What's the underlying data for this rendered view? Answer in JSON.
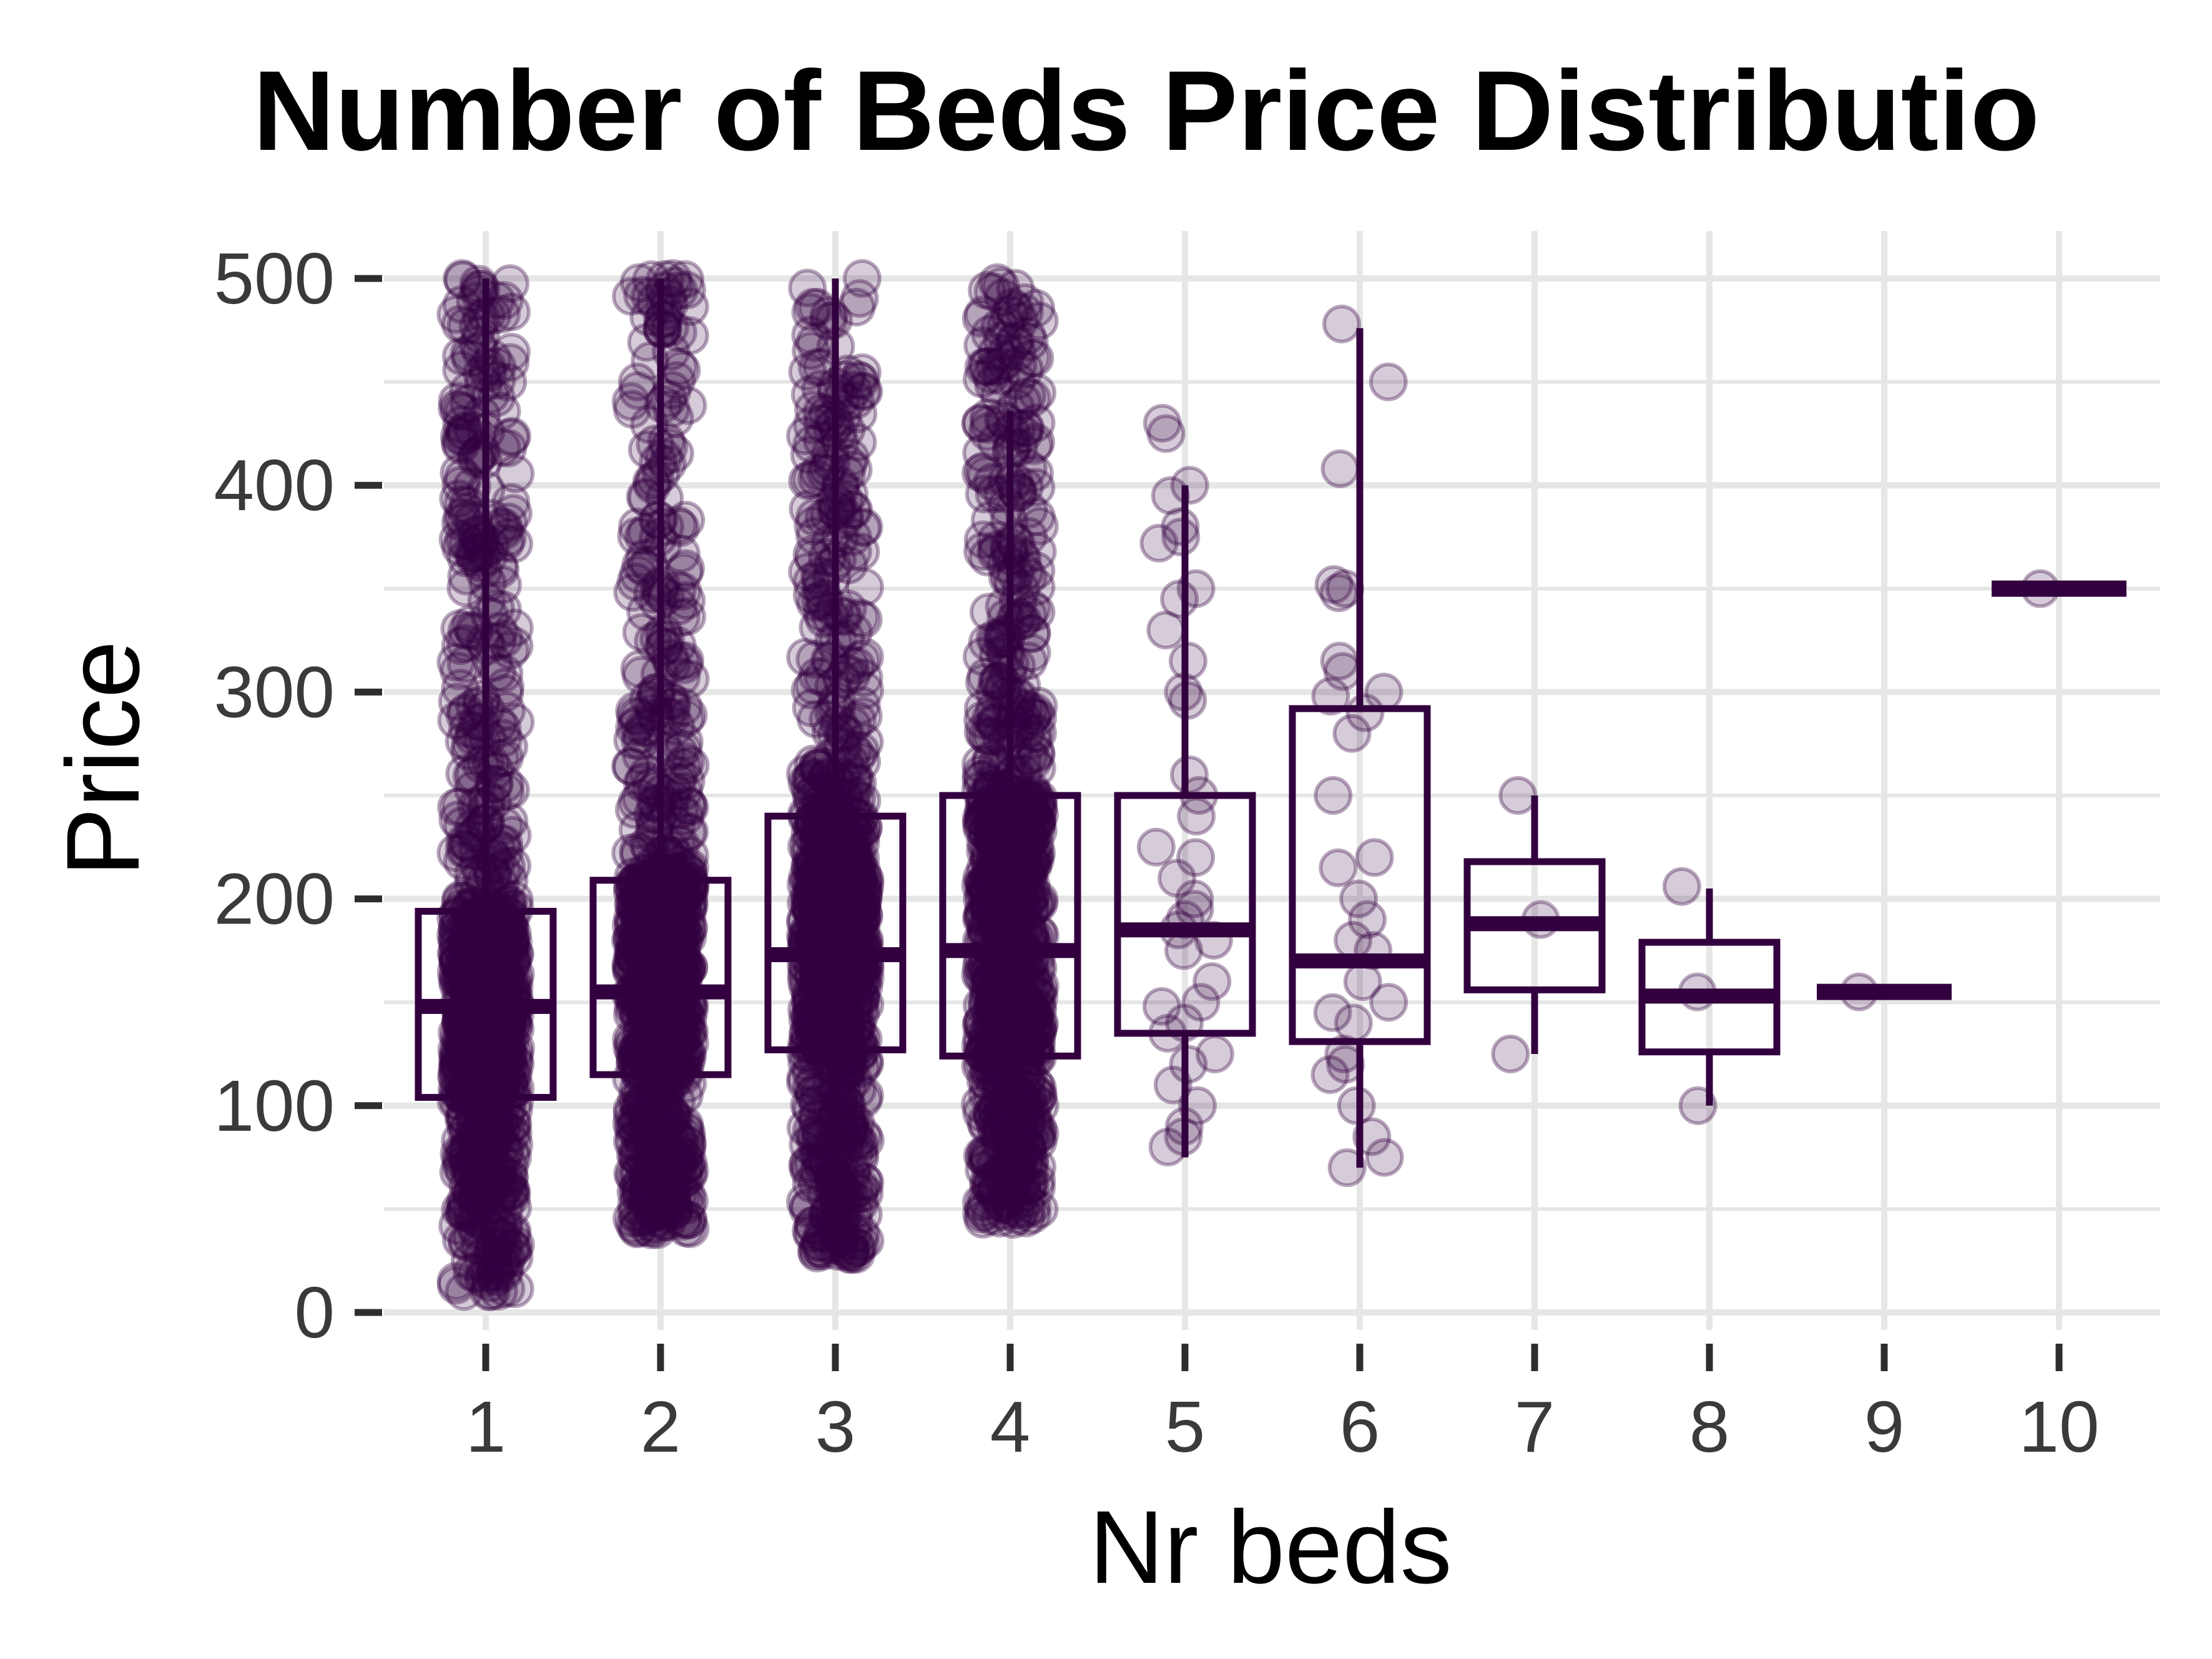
{
  "chart_data": {
    "type": "boxplot",
    "title": "Number of Beds Price Distributio",
    "xlabel": "Nr beds",
    "ylabel": "Price",
    "ylim": [
      0,
      500
    ],
    "yticks": [
      0,
      100,
      200,
      300,
      400,
      500
    ],
    "categories": [
      "1",
      "2",
      "3",
      "4",
      "5",
      "6",
      "7",
      "8",
      "9",
      "10"
    ],
    "grid": true,
    "legend": "none",
    "colors": {
      "series": "#33003f",
      "grid": "#e6e6e6",
      "tick": "#2d2d2d"
    },
    "boxes": [
      {
        "category": "1",
        "min": 12,
        "q1": 104,
        "median": 148,
        "q3": 194,
        "max": 500
      },
      {
        "category": "2",
        "min": 40,
        "q1": 115,
        "median": 155,
        "q3": 209,
        "max": 500
      },
      {
        "category": "3",
        "min": 30,
        "q1": 127,
        "median": 173,
        "q3": 240,
        "max": 500
      },
      {
        "category": "4",
        "min": 46,
        "q1": 124,
        "median": 175,
        "q3": 250,
        "max": 436
      },
      {
        "category": "5",
        "min": 75,
        "q1": 135,
        "median": 185,
        "q3": 250,
        "max": 400
      },
      {
        "category": "6",
        "min": 70,
        "q1": 131,
        "median": 170,
        "q3": 292,
        "max": 476
      },
      {
        "category": "7",
        "min": 125,
        "q1": 156,
        "median": 188,
        "q3": 218,
        "max": 250
      },
      {
        "category": "8",
        "min": 100,
        "q1": 126,
        "median": 153,
        "q3": 179,
        "max": 205
      },
      {
        "category": "9",
        "min": 155,
        "q1": 155,
        "median": 155,
        "q3": 155,
        "max": 155
      },
      {
        "category": "10",
        "min": 350,
        "q1": 350,
        "median": 350,
        "q3": 350,
        "max": 350
      }
    ],
    "points": [
      {
        "category": "1",
        "density": "dense",
        "range": [
          10,
          500
        ]
      },
      {
        "category": "2",
        "density": "dense",
        "range": [
          40,
          500
        ]
      },
      {
        "category": "3",
        "density": "dense",
        "range": [
          28,
          500
        ]
      },
      {
        "category": "4",
        "density": "dense",
        "range": [
          45,
          498
        ]
      },
      {
        "category": "5",
        "values": [
          430,
          425,
          400,
          395,
          380,
          375,
          372,
          350,
          345,
          330,
          315,
          300,
          296,
          260,
          250,
          240,
          225,
          220,
          210,
          200,
          195,
          190,
          185,
          180,
          175,
          160,
          150,
          148,
          140,
          135,
          125,
          120,
          110,
          100,
          90,
          85,
          80
        ]
      },
      {
        "category": "6",
        "values": [
          478,
          450,
          408,
          352,
          350,
          348,
          315,
          310,
          300,
          298,
          290,
          280,
          250,
          220,
          215,
          200,
          190,
          180,
          175,
          160,
          150,
          145,
          140,
          125,
          120,
          115,
          100,
          85,
          75,
          70
        ]
      },
      {
        "category": "7",
        "values": [
          250,
          190,
          125
        ]
      },
      {
        "category": "8",
        "values": [
          206,
          155,
          100
        ]
      },
      {
        "category": "9",
        "values": [
          155
        ]
      },
      {
        "category": "10",
        "values": [
          350
        ]
      }
    ]
  }
}
